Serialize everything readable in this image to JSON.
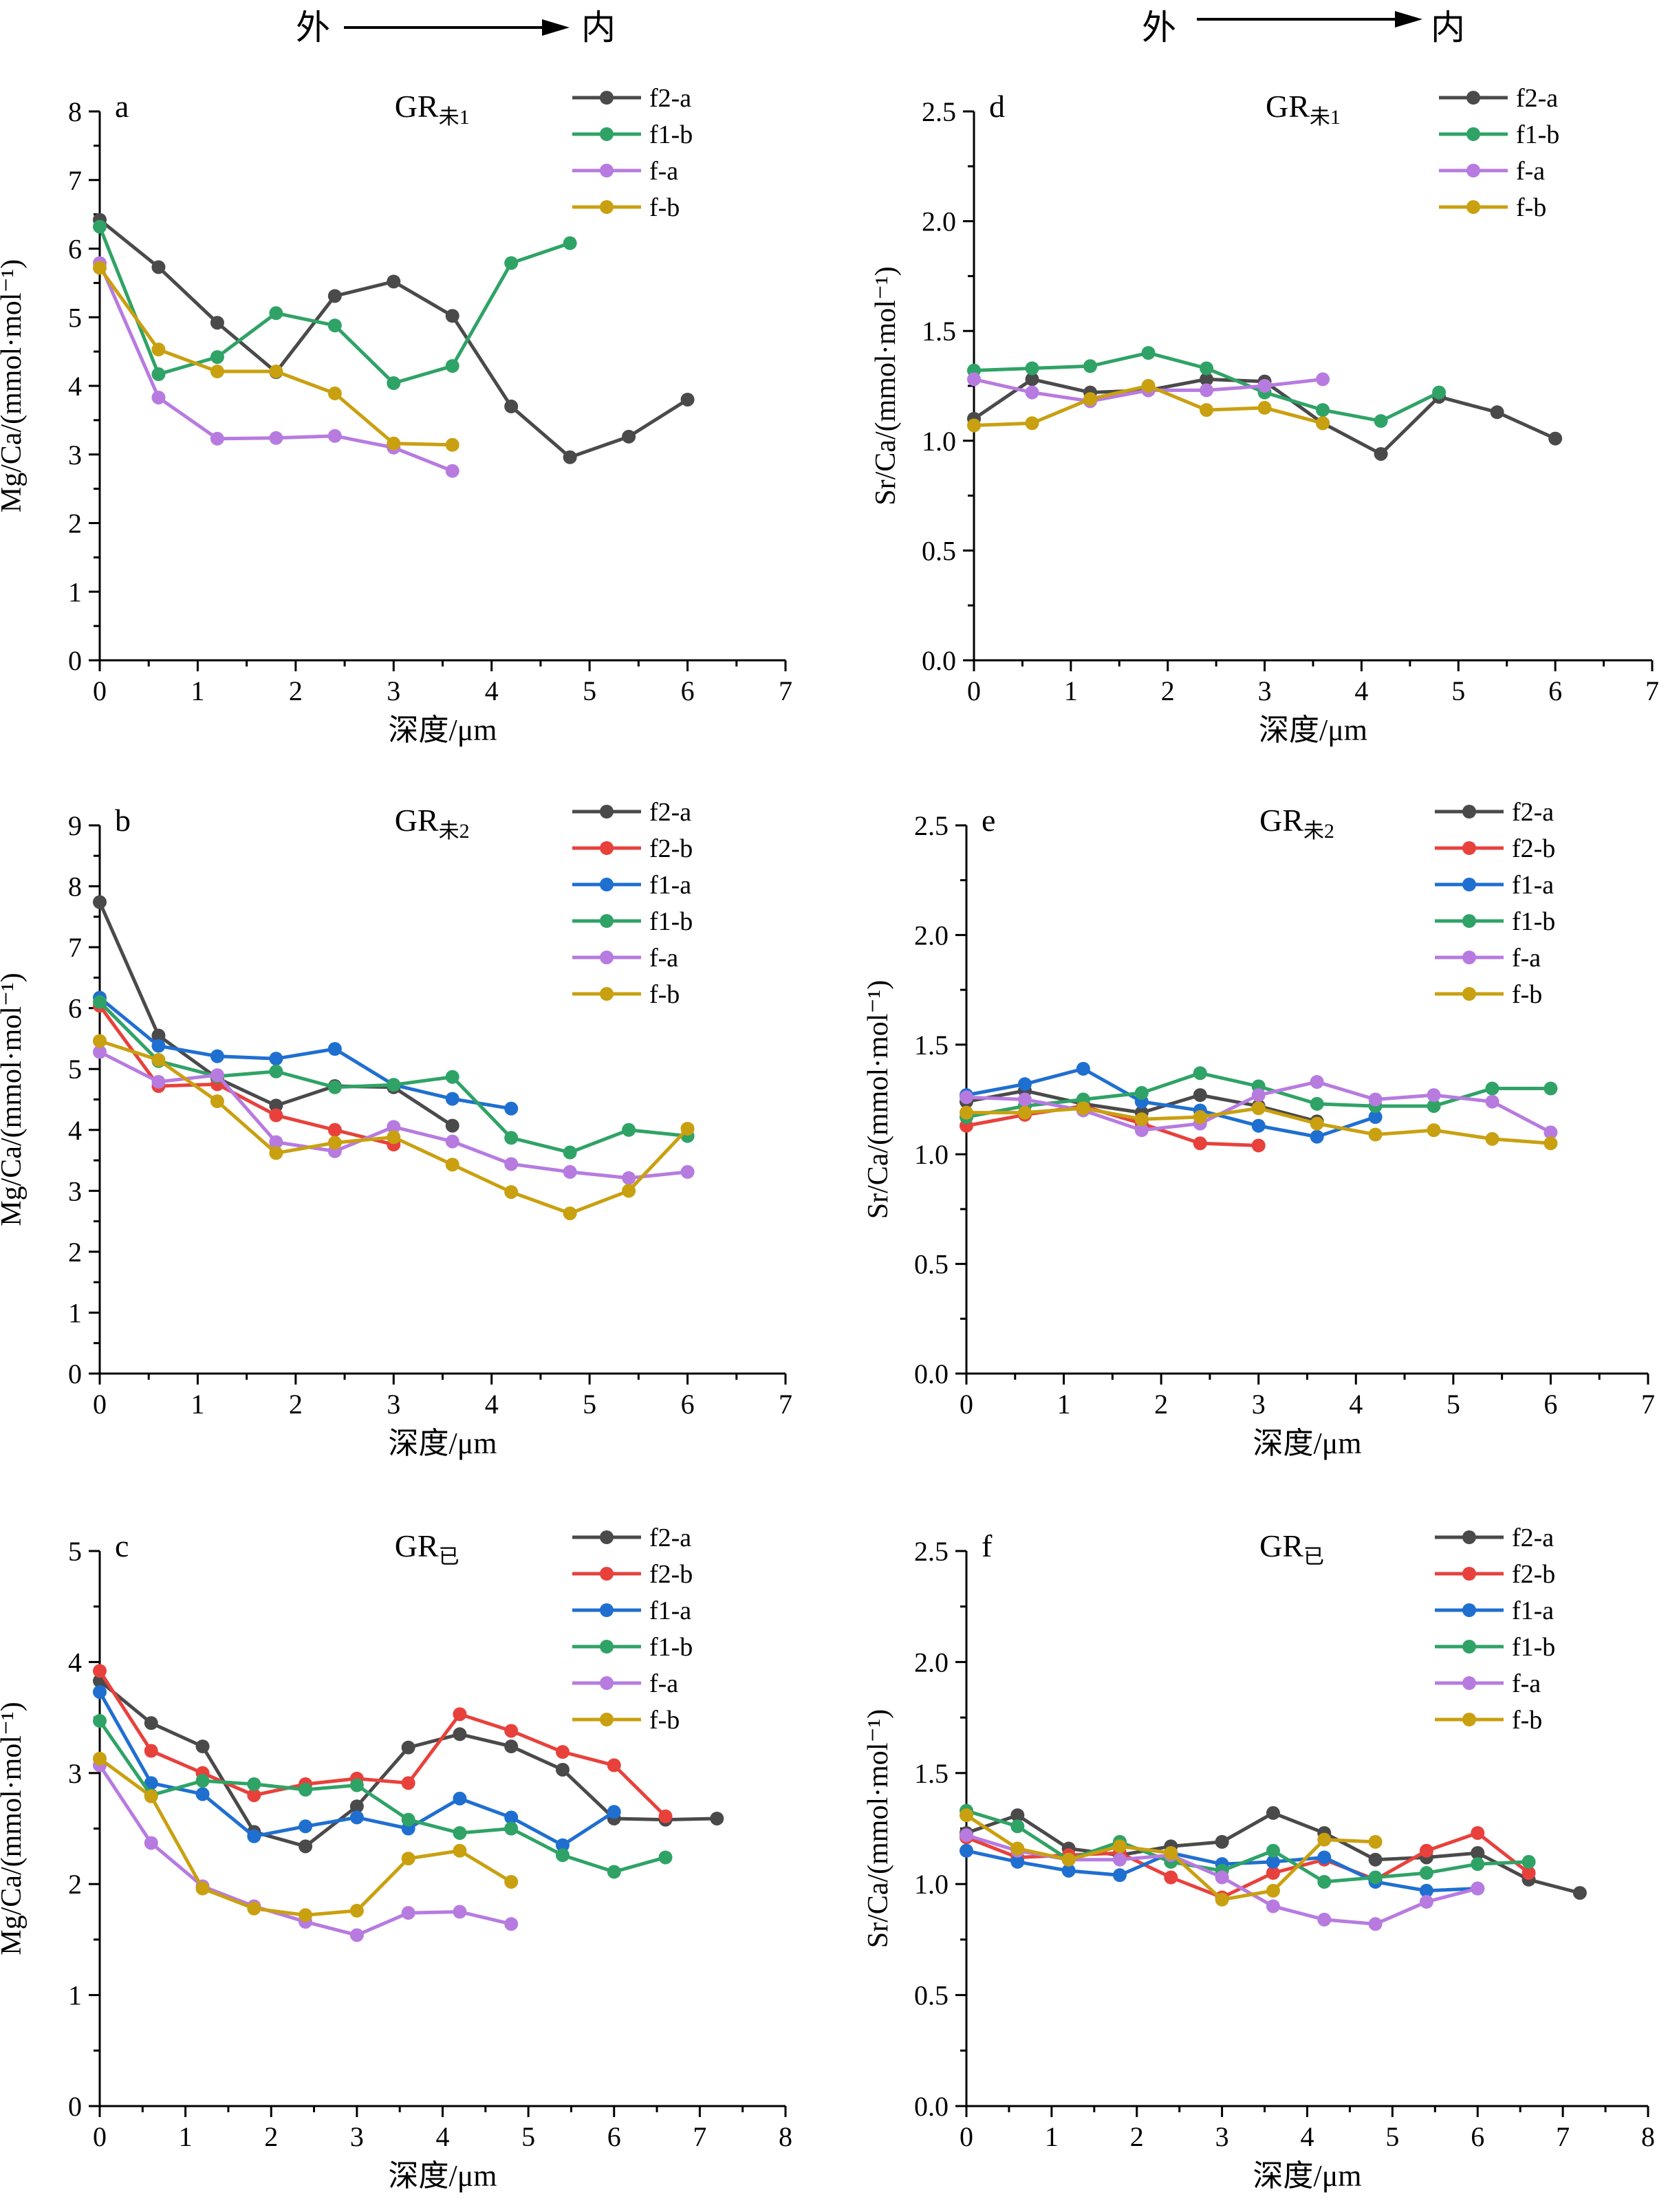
{
  "header": {
    "left": {
      "outer": "外",
      "inner": "内"
    },
    "right": {
      "outer": "外",
      "inner": "内"
    }
  },
  "colors": {
    "f2-a": "#4a4a4a",
    "f2-b": "#e8413c",
    "f1-a": "#1f6fd1",
    "f1-b": "#2fa366",
    "f-a": "#b77be0",
    "f-b": "#c9a010"
  },
  "chart_data": [
    {
      "panel": "a",
      "type": "line",
      "title_main": "GR",
      "title_sub": "未1",
      "xlabel": "深度/μm",
      "ylabel": "Mg/Ca/(mmol·mol⁻¹)",
      "xlim": [
        0,
        7
      ],
      "ylim": [
        0,
        8
      ],
      "xticks": [
        0,
        1,
        2,
        3,
        4,
        5,
        6,
        7
      ],
      "yticks": [
        0,
        1,
        2,
        3,
        4,
        5,
        6,
        7,
        8
      ],
      "legend": "top-right",
      "grid": false,
      "series": [
        {
          "name": "f2-a",
          "x": [
            0,
            0.6,
            1.2,
            1.8,
            2.4,
            3.0,
            3.6,
            4.2,
            4.8,
            5.4,
            6.0
          ],
          "y": [
            6.42,
            5.73,
            4.92,
            4.2,
            5.31,
            5.52,
            5.02,
            3.7,
            2.96,
            3.26,
            3.8
          ]
        },
        {
          "name": "f1-b",
          "x": [
            0,
            0.6,
            1.2,
            1.8,
            2.4,
            3.0,
            3.6,
            4.2,
            4.8
          ],
          "y": [
            6.32,
            4.17,
            4.42,
            5.06,
            4.88,
            4.04,
            4.29,
            5.79,
            6.08
          ]
        },
        {
          "name": "f-a",
          "x": [
            0,
            0.6,
            1.2,
            1.8,
            2.4,
            3.0,
            3.6
          ],
          "y": [
            5.79,
            3.83,
            3.23,
            3.24,
            3.27,
            3.1,
            2.76
          ]
        },
        {
          "name": "f-b",
          "x": [
            0,
            0.6,
            1.2,
            1.8,
            2.4,
            3.0,
            3.6
          ],
          "y": [
            5.72,
            4.53,
            4.21,
            4.21,
            3.89,
            3.16,
            3.14
          ]
        }
      ]
    },
    {
      "panel": "d",
      "type": "line",
      "title_main": "GR",
      "title_sub": "未1",
      "xlabel": "深度/μm",
      "ylabel": "Sr/Ca/(mmol·mol⁻¹)",
      "xlim": [
        0,
        7
      ],
      "ylim": [
        0,
        2.5
      ],
      "xticks": [
        0,
        1,
        2,
        3,
        4,
        5,
        6,
        7
      ],
      "yticks": [
        0.0,
        0.5,
        1.0,
        1.5,
        2.0,
        2.5
      ],
      "legend": "top-right",
      "grid": false,
      "series": [
        {
          "name": "f2-a",
          "x": [
            0,
            0.6,
            1.2,
            1.8,
            2.4,
            3.0,
            3.6,
            4.2,
            4.8,
            5.4,
            6.0
          ],
          "y": [
            1.1,
            1.28,
            1.22,
            1.23,
            1.28,
            1.27,
            1.08,
            0.94,
            1.2,
            1.13,
            1.01
          ]
        },
        {
          "name": "f1-b",
          "x": [
            0,
            0.6,
            1.2,
            1.8,
            2.4,
            3.0,
            3.6,
            4.2,
            4.8
          ],
          "y": [
            1.32,
            1.33,
            1.34,
            1.4,
            1.33,
            1.22,
            1.14,
            1.09,
            1.22
          ]
        },
        {
          "name": "f-a",
          "x": [
            0,
            0.6,
            1.2,
            1.8,
            2.4,
            3.0,
            3.6
          ],
          "y": [
            1.28,
            1.22,
            1.18,
            1.23,
            1.23,
            1.25,
            1.28
          ]
        },
        {
          "name": "f-b",
          "x": [
            0,
            0.6,
            1.2,
            1.8,
            2.4,
            3.0,
            3.6
          ],
          "y": [
            1.07,
            1.08,
            1.19,
            1.25,
            1.14,
            1.15,
            1.08
          ]
        }
      ]
    },
    {
      "panel": "b",
      "type": "line",
      "title_main": "GR",
      "title_sub": "未2",
      "xlabel": "深度/μm",
      "ylabel": "Mg/Ca/(mmol·mol⁻¹)",
      "xlim": [
        0,
        7
      ],
      "ylim": [
        0,
        9
      ],
      "xticks": [
        0,
        1,
        2,
        3,
        4,
        5,
        6,
        7
      ],
      "yticks": [
        0,
        1,
        2,
        3,
        4,
        5,
        6,
        7,
        8,
        9
      ],
      "legend": "top-right",
      "grid": false,
      "series": [
        {
          "name": "f2-a",
          "x": [
            0,
            0.6,
            1.2,
            1.8,
            2.4,
            3.0,
            3.6
          ],
          "y": [
            7.74,
            5.55,
            4.85,
            4.4,
            4.72,
            4.7,
            4.07
          ]
        },
        {
          "name": "f2-b",
          "x": [
            0,
            0.6,
            1.2,
            1.8,
            2.4,
            3.0
          ],
          "y": [
            6.04,
            4.72,
            4.75,
            4.24,
            4.0,
            3.76
          ]
        },
        {
          "name": "f1-a",
          "x": [
            0,
            0.6,
            1.2,
            1.8,
            2.4,
            3.0,
            3.6,
            4.2
          ],
          "y": [
            6.17,
            5.38,
            5.21,
            5.17,
            5.33,
            4.74,
            4.51,
            4.35
          ]
        },
        {
          "name": "f1-b",
          "x": [
            0,
            0.6,
            1.2,
            1.8,
            2.4,
            3.0,
            3.6,
            4.2,
            4.8,
            5.4,
            6.0
          ],
          "y": [
            6.1,
            5.13,
            4.88,
            4.96,
            4.7,
            4.74,
            4.87,
            3.87,
            3.63,
            4.0,
            3.9
          ]
        },
        {
          "name": "f-a",
          "x": [
            0,
            0.6,
            1.2,
            1.8,
            2.4,
            3.0,
            3.6,
            4.2,
            4.8,
            5.4,
            6.0
          ],
          "y": [
            5.28,
            4.79,
            4.9,
            3.8,
            3.65,
            4.05,
            3.81,
            3.44,
            3.31,
            3.21,
            3.31
          ]
        },
        {
          "name": "f-b",
          "x": [
            0,
            0.6,
            1.2,
            1.8,
            2.4,
            3.0,
            3.6,
            4.2,
            4.8,
            5.4,
            6.0
          ],
          "y": [
            5.46,
            5.15,
            4.47,
            3.62,
            3.79,
            3.88,
            3.43,
            2.98,
            2.63,
            3.0,
            4.02
          ]
        }
      ]
    },
    {
      "panel": "e",
      "type": "line",
      "title_main": "GR",
      "title_sub": "未2",
      "xlabel": "深度/μm",
      "ylabel": "Sr/Ca/(mmol·mol⁻¹)",
      "xlim": [
        0,
        7
      ],
      "ylim": [
        0,
        2.5
      ],
      "xticks": [
        0,
        1,
        2,
        3,
        4,
        5,
        6,
        7
      ],
      "yticks": [
        0.0,
        0.5,
        1.0,
        1.5,
        2.0,
        2.5
      ],
      "legend": "top-right",
      "grid": false,
      "series": [
        {
          "name": "f2-a",
          "x": [
            0,
            0.6,
            1.2,
            1.8,
            2.4,
            3.0,
            3.6
          ],
          "y": [
            1.24,
            1.29,
            1.23,
            1.19,
            1.27,
            1.22,
            1.15
          ]
        },
        {
          "name": "f2-b",
          "x": [
            0,
            0.6,
            1.2,
            1.8,
            2.4,
            3.0
          ],
          "y": [
            1.13,
            1.18,
            1.22,
            1.14,
            1.05,
            1.04
          ]
        },
        {
          "name": "f1-a",
          "x": [
            0,
            0.6,
            1.2,
            1.8,
            2.4,
            3.0,
            3.6,
            4.2
          ],
          "y": [
            1.27,
            1.32,
            1.39,
            1.24,
            1.2,
            1.13,
            1.08,
            1.17
          ]
        },
        {
          "name": "f1-b",
          "x": [
            0,
            0.6,
            1.2,
            1.8,
            2.4,
            3.0,
            3.6,
            4.2,
            4.8,
            5.4,
            6.0
          ],
          "y": [
            1.17,
            1.22,
            1.25,
            1.28,
            1.37,
            1.31,
            1.23,
            1.22,
            1.22,
            1.3,
            1.3
          ]
        },
        {
          "name": "f-a",
          "x": [
            0,
            0.6,
            1.2,
            1.8,
            2.4,
            3.0,
            3.6,
            4.2,
            4.8,
            5.4,
            6.0
          ],
          "y": [
            1.26,
            1.25,
            1.2,
            1.11,
            1.14,
            1.27,
            1.33,
            1.25,
            1.27,
            1.24,
            1.1
          ]
        },
        {
          "name": "f-b",
          "x": [
            0,
            0.6,
            1.2,
            1.8,
            2.4,
            3.0,
            3.6,
            4.2,
            4.8,
            5.4,
            6.0
          ],
          "y": [
            1.19,
            1.19,
            1.21,
            1.16,
            1.17,
            1.21,
            1.14,
            1.09,
            1.11,
            1.07,
            1.05
          ]
        }
      ]
    },
    {
      "panel": "c",
      "type": "line",
      "title_main": "GR",
      "title_sub": "已",
      "xlabel": "深度/μm",
      "ylabel": "Mg/Ca/(mmol·mol⁻¹)",
      "xlim": [
        0,
        8
      ],
      "ylim": [
        0,
        5
      ],
      "xticks": [
        0,
        1,
        2,
        3,
        4,
        5,
        6,
        7,
        8
      ],
      "yticks": [
        0,
        1,
        2,
        3,
        4,
        5
      ],
      "legend": "top-right",
      "grid": false,
      "series": [
        {
          "name": "f2-a",
          "x": [
            0,
            0.6,
            1.2,
            1.8,
            2.4,
            3.0,
            3.6,
            4.2,
            4.8,
            5.4,
            6.0,
            6.6,
            7.2
          ],
          "y": [
            3.83,
            3.45,
            3.24,
            2.47,
            2.34,
            2.7,
            3.23,
            3.35,
            3.24,
            3.03,
            2.59,
            2.58,
            2.59
          ]
        },
        {
          "name": "f2-b",
          "x": [
            0,
            0.6,
            1.2,
            1.8,
            2.4,
            3.0,
            3.6,
            4.2,
            4.8,
            5.4,
            6.0,
            6.6
          ],
          "y": [
            3.92,
            3.2,
            3.0,
            2.8,
            2.9,
            2.95,
            2.91,
            3.53,
            3.38,
            3.19,
            3.07,
            2.61
          ]
        },
        {
          "name": "f1-a",
          "x": [
            0,
            0.6,
            1.2,
            1.8,
            2.4,
            3.0,
            3.6,
            4.2,
            4.8,
            5.4,
            6.0
          ],
          "y": [
            3.73,
            2.91,
            2.81,
            2.43,
            2.52,
            2.6,
            2.5,
            2.77,
            2.6,
            2.35,
            2.65
          ]
        },
        {
          "name": "f1-b",
          "x": [
            0,
            0.6,
            1.2,
            1.8,
            2.4,
            3.0,
            3.6,
            4.2,
            4.8,
            5.4,
            6.0,
            6.6
          ],
          "y": [
            3.47,
            2.8,
            2.93,
            2.9,
            2.85,
            2.89,
            2.58,
            2.46,
            2.5,
            2.26,
            2.11,
            2.24
          ]
        },
        {
          "name": "f-a",
          "x": [
            0,
            0.6,
            1.2,
            1.8,
            2.4,
            3.0,
            3.6,
            4.2,
            4.8
          ],
          "y": [
            3.07,
            2.37,
            1.98,
            1.8,
            1.66,
            1.54,
            1.74,
            1.75,
            1.64
          ]
        },
        {
          "name": "f-b",
          "x": [
            0,
            0.6,
            1.2,
            1.8,
            2.4,
            3.0,
            3.6,
            4.2,
            4.8
          ],
          "y": [
            3.13,
            2.79,
            1.96,
            1.78,
            1.72,
            1.76,
            2.23,
            2.3,
            2.02
          ]
        }
      ]
    },
    {
      "panel": "f",
      "type": "line",
      "title_main": "GR",
      "title_sub": "已",
      "xlabel": "深度/μm",
      "ylabel": "Sr/Ca/(mmol·mol⁻¹)",
      "xlim": [
        0,
        8
      ],
      "ylim": [
        0,
        2.5
      ],
      "xticks": [
        0,
        1,
        2,
        3,
        4,
        5,
        6,
        7,
        8
      ],
      "yticks": [
        0.0,
        0.5,
        1.0,
        1.5,
        2.0,
        2.5
      ],
      "legend": "top-right",
      "grid": false,
      "series": [
        {
          "name": "f2-a",
          "x": [
            0,
            0.6,
            1.2,
            1.8,
            2.4,
            3.0,
            3.6,
            4.2,
            4.8,
            5.4,
            6.0,
            6.6,
            7.2
          ],
          "y": [
            1.23,
            1.31,
            1.16,
            1.13,
            1.17,
            1.19,
            1.32,
            1.23,
            1.11,
            1.12,
            1.14,
            1.02,
            0.96
          ]
        },
        {
          "name": "f2-b",
          "x": [
            0,
            0.6,
            1.2,
            1.8,
            2.4,
            3.0,
            3.6,
            4.2,
            4.8,
            5.4,
            6.0,
            6.6
          ],
          "y": [
            1.21,
            1.12,
            1.13,
            1.14,
            1.03,
            0.94,
            1.05,
            1.11,
            1.02,
            1.15,
            1.23,
            1.05
          ]
        },
        {
          "name": "f1-a",
          "x": [
            0,
            0.6,
            1.2,
            1.8,
            2.4,
            3.0,
            3.6,
            4.2,
            4.8,
            5.4,
            6.0
          ],
          "y": [
            1.15,
            1.1,
            1.06,
            1.04,
            1.14,
            1.09,
            1.1,
            1.12,
            1.01,
            0.97,
            0.98
          ]
        },
        {
          "name": "f1-b",
          "x": [
            0,
            0.6,
            1.2,
            1.8,
            2.4,
            3.0,
            3.6,
            4.2,
            4.8,
            5.4,
            6.0,
            6.6
          ],
          "y": [
            1.33,
            1.26,
            1.11,
            1.19,
            1.1,
            1.06,
            1.15,
            1.01,
            1.03,
            1.05,
            1.09,
            1.1
          ]
        },
        {
          "name": "f-a",
          "x": [
            0,
            0.6,
            1.2,
            1.8,
            2.4,
            3.0,
            3.6,
            4.2,
            4.8,
            5.4,
            6.0
          ],
          "y": [
            1.22,
            1.15,
            1.11,
            1.11,
            1.13,
            1.03,
            0.9,
            0.84,
            0.82,
            0.92,
            0.98
          ]
        },
        {
          "name": "f-b",
          "x": [
            0,
            0.6,
            1.2,
            1.8,
            2.4,
            3.0,
            3.6,
            4.2,
            4.8
          ],
          "y": [
            1.31,
            1.16,
            1.11,
            1.17,
            1.14,
            0.93,
            0.97,
            1.2,
            1.19
          ]
        }
      ]
    }
  ]
}
